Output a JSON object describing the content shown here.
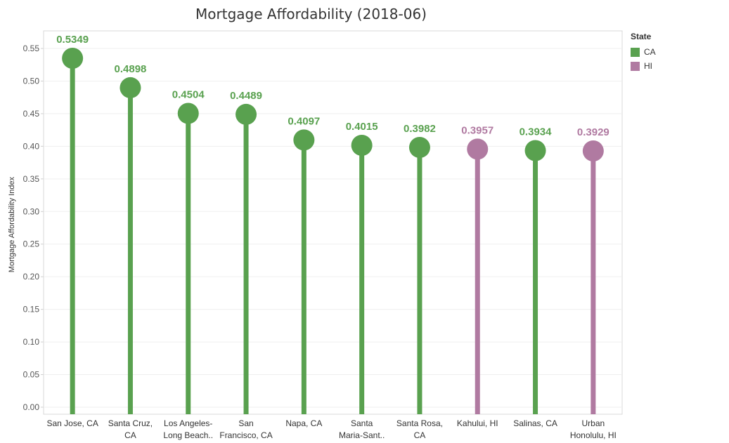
{
  "chart_data": {
    "type": "lollipop",
    "title": "Mortgage Affordability (2018-06)",
    "ylabel": "Mortgage Affordability Index",
    "xlabel": "",
    "ylim": [
      0,
      0.57
    ],
    "yticks": [
      "0.00",
      "0.05",
      "0.10",
      "0.15",
      "0.20",
      "0.25",
      "0.30",
      "0.35",
      "0.40",
      "0.45",
      "0.50",
      "0.55"
    ],
    "grid": true,
    "legend": {
      "title": "State",
      "position": "right",
      "entries": [
        {
          "label": "CA",
          "color": "#59a14f"
        },
        {
          "label": "HI",
          "color": "#b07aa1"
        }
      ]
    },
    "points": [
      {
        "label": [
          "San Jose, CA"
        ],
        "value": 0.5349,
        "value_label": "0.5349",
        "state": "CA"
      },
      {
        "label": [
          "Santa Cruz,",
          "CA"
        ],
        "value": 0.4898,
        "value_label": "0.4898",
        "state": "CA"
      },
      {
        "label": [
          "Los Angeles-",
          "Long Beach.."
        ],
        "value": 0.4504,
        "value_label": "0.4504",
        "state": "CA"
      },
      {
        "label": [
          "San",
          "Francisco, CA"
        ],
        "value": 0.4489,
        "value_label": "0.4489",
        "state": "CA"
      },
      {
        "label": [
          "Napa, CA"
        ],
        "value": 0.4097,
        "value_label": "0.4097",
        "state": "CA"
      },
      {
        "label": [
          "Santa",
          "Maria-Sant.."
        ],
        "value": 0.4015,
        "value_label": "0.4015",
        "state": "CA"
      },
      {
        "label": [
          "Santa Rosa,",
          "CA"
        ],
        "value": 0.3982,
        "value_label": "0.3982",
        "state": "CA"
      },
      {
        "label": [
          "Kahului, HI"
        ],
        "value": 0.3957,
        "value_label": "0.3957",
        "state": "HI"
      },
      {
        "label": [
          "Salinas, CA"
        ],
        "value": 0.3934,
        "value_label": "0.3934",
        "state": "CA"
      },
      {
        "label": [
          "Urban",
          "Honolulu, HI"
        ],
        "value": 0.3929,
        "value_label": "0.3929",
        "state": "HI"
      }
    ]
  }
}
